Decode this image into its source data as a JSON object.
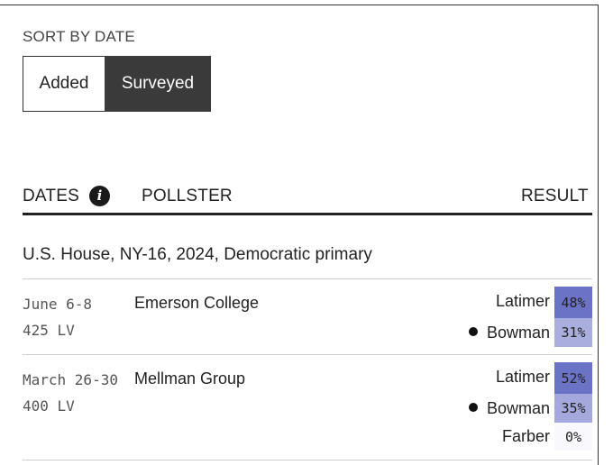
{
  "sort": {
    "label": "SORT BY DATE",
    "options": [
      "Added",
      "Surveyed"
    ],
    "selected": "Surveyed"
  },
  "table": {
    "headers": {
      "dates": "DATES",
      "pollster": "POLLSTER",
      "result": "RESULT"
    },
    "race_title": "U.S. House, NY-16, 2024, Democratic primary",
    "polls": [
      {
        "dates": "June 6-8",
        "sample": "425 LV",
        "pollster": "Emerson College",
        "results": [
          {
            "candidate": "Latimer",
            "pct": "48%",
            "color": "#6b73c6",
            "leader": false
          },
          {
            "candidate": "Bowman",
            "pct": "31%",
            "color": "#aaaedf",
            "leader": true
          }
        ]
      },
      {
        "dates": "March 26-30",
        "sample": "400 LV",
        "pollster": "Mellman Group",
        "results": [
          {
            "candidate": "Latimer",
            "pct": "52%",
            "color": "#6b73c6",
            "leader": false
          },
          {
            "candidate": "Bowman",
            "pct": "35%",
            "color": "#a4a8dc",
            "leader": true
          },
          {
            "candidate": "Farber",
            "pct": "0%",
            "color": "#f8f8fd",
            "leader": false
          }
        ]
      }
    ]
  }
}
